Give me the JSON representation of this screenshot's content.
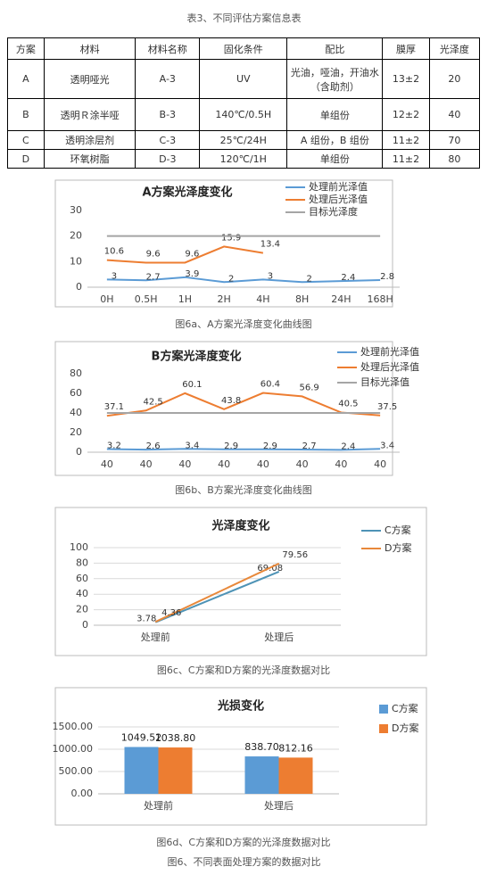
{
  "table_caption": "表3、不同评估方案信息表",
  "table": {
    "header": [
      "方案",
      "材料",
      "材料名称",
      "固化条件",
      "配比",
      "膜厚",
      "光泽度"
    ],
    "rows": [
      [
        "A",
        "透明哑光",
        "A-3",
        "UV",
        "光油，哑油，开油水（含助剂）",
        "13±2",
        "20"
      ],
      [
        "B",
        "透明Ｒ涂半哑",
        "B-3",
        "140℃/0.5H",
        "单组份",
        "12±2",
        "40"
      ],
      [
        "C",
        "透明涂层剂",
        "C-3",
        "25℃/24H",
        "A 组份，B 组份",
        "11±2",
        "70"
      ],
      [
        "D",
        "环氧树脂",
        "D-3",
        "120℃/1H",
        "单组份",
        "11±2",
        "80"
      ]
    ]
  },
  "chart_data": [
    {
      "type": "line",
      "title": "A方案光泽度变化",
      "caption": "图6a、A方案光泽度变化曲线图",
      "categories": [
        "0H",
        "0.5H",
        "1H",
        "2H",
        "4H",
        "8H",
        "24H",
        "168H"
      ],
      "series": [
        {
          "name": "处理前光泽值",
          "color": "#5b9bd5",
          "values": [
            3,
            2.7,
            3.9,
            2,
            3,
            2,
            2.4,
            2.8
          ]
        },
        {
          "name": "处理后光泽值",
          "color": "#ed7d31",
          "values": [
            10.6,
            9.6,
            9.6,
            15.9,
            13.4,
            null,
            null,
            null
          ]
        },
        {
          "name": "目标光泽度",
          "color": "#a5a5a5",
          "values": [
            20,
            20,
            20,
            20,
            20,
            20,
            20,
            20
          ]
        }
      ],
      "ylim": [
        0,
        30
      ],
      "yticks": [
        0,
        10,
        20,
        30
      ],
      "grid": false,
      "legend": "top-right"
    },
    {
      "type": "line",
      "title": "B方案光泽度变化",
      "caption": "图6b、B方案光泽度变化曲线图",
      "categories": [
        "40",
        "40",
        "40",
        "40",
        "40",
        "40",
        "40",
        "40"
      ],
      "series": [
        {
          "name": "处理前光泽值",
          "color": "#5b9bd5",
          "values": [
            3.2,
            2.6,
            3.4,
            2.9,
            2.9,
            2.7,
            2.4,
            3.4
          ]
        },
        {
          "name": "处理后光泽值",
          "color": "#ed7d31",
          "values": [
            37.1,
            42.5,
            60.1,
            43.8,
            60.4,
            56.9,
            40.5,
            37.5
          ]
        },
        {
          "name": "目标光泽值",
          "color": "#a5a5a5",
          "values": [
            40,
            40,
            40,
            40,
            40,
            40,
            40,
            40
          ]
        }
      ],
      "ylim": [
        0,
        80
      ],
      "yticks": [
        0,
        20,
        40,
        60,
        80
      ],
      "grid": false,
      "legend": "right"
    },
    {
      "type": "line",
      "title": "光泽度变化",
      "caption": "图6c、C方案和D方案的光泽度数据对比",
      "categories": [
        "处理前",
        "处理后"
      ],
      "series": [
        {
          "name": "C方案",
          "color": "#4e93b6",
          "values": [
            3.78,
            69.08
          ]
        },
        {
          "name": "D方案",
          "color": "#e8883a",
          "values": [
            4.36,
            79.56
          ]
        }
      ],
      "ylim": [
        0,
        100
      ],
      "yticks": [
        0,
        20,
        40,
        60,
        80,
        100
      ],
      "grid": true,
      "legend": "right"
    },
    {
      "type": "bar",
      "title": "光损变化",
      "caption": "图6d、C方案和D方案的光泽度数据对比",
      "categories": [
        "处理前",
        "处理后"
      ],
      "series": [
        {
          "name": "C方案",
          "color": "#5b9bd5",
          "values": [
            1049.52,
            838.7
          ],
          "value_labels": [
            "1049.52",
            "838.70"
          ]
        },
        {
          "name": "D方案",
          "color": "#ed7d31",
          "values": [
            1038.8,
            812.16
          ],
          "value_labels": [
            "1038.80",
            "812.16"
          ]
        }
      ],
      "ylim": [
        0,
        1500
      ],
      "yticks": [
        {
          "value": 0,
          "label": "0.00"
        },
        {
          "value": 500,
          "label": "500.00"
        },
        {
          "value": 1000,
          "label": "1000.00"
        },
        {
          "value": 1500,
          "label": "1500.00"
        }
      ],
      "grid": true,
      "legend": "right"
    }
  ],
  "figure_caption": "图6、不同表面处理方案的数据对比"
}
